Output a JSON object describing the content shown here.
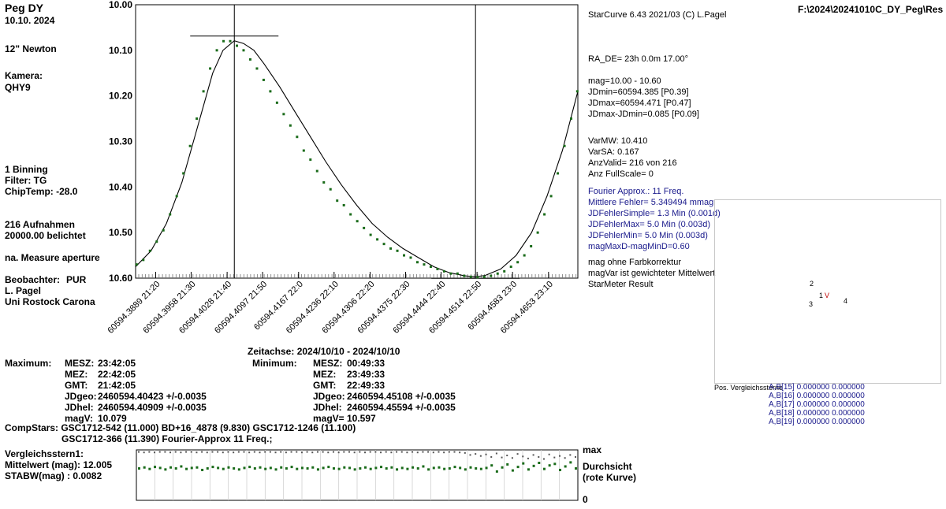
{
  "star": {
    "name": "Peg DY",
    "date": "10.10. 2024",
    "telescope": "12\" Newton",
    "camera_label": "Kamera:",
    "camera": "QHY9",
    "binning": "1 Binning",
    "filter": "Filter: TG",
    "chiptemp": "ChipTemp: -28.0",
    "exposures": "216 Aufnahmen",
    "exposed": "20000.00 belichtet",
    "measure": "na. Measure aperture",
    "observer_label": "Beobachter:",
    "observer_code": "PUR",
    "observer_name": "L. Pagel",
    "institution": "Uni Rostock Carona"
  },
  "software": "StarCurve 6.43 2021/03  (C) L.Pagel",
  "filepath": "F:\\2024\\20241010C_DY_Peg\\Res",
  "right_info": {
    "ra_de": "RA_DE= 23h 0.0m 17.00°",
    "mag_range": "mag=10.00 - 10.60",
    "jdmin": "JDmin=60594.385 [P0.39]",
    "jdmax": "JDmax=60594.471 [P0.47]",
    "jdspan": "JDmax-JDmin=0.085 [P0.09]",
    "varmw": "VarMW: 10.410",
    "varsa": "VarSA: 0.167",
    "anzvalid": "AnzValid= 216 von 216",
    "fullscale": "Anz FullScale= 0"
  },
  "fourier_info": [
    "Fourier Approx.: 11 Freq.",
    "Mittlere Fehler= 5.349494 mmag",
    "JDFehlerSimple=    1.3 Min (0.001d)",
    "JDFehlerMax=    5.0 Min (0.003d)",
    "JDFehlerMin=   5.0 Min (0.003d)",
    "magMaxD-magMinD=0.60"
  ],
  "notes": [
    "mag ohne Farbkorrektur",
    "magVar ist gewichteter Mittelwert",
    "StarMeter Result"
  ],
  "comp_panel": {
    "title": "Pos. Vergleichssterne",
    "labels": [
      "2",
      "1",
      "V",
      "3",
      "4"
    ],
    "rows": [
      "A,B[15] 0.000000 0.000000",
      "A,B[16] 0.000000 0.000000",
      "A,B[17] 0.000000 0.000000",
      "A,B[18] 0.000000 0.000000",
      "A,B[19] 0.000000 0.000000"
    ]
  },
  "zeitachse": "Zeitachse:  2024/10/10  -  2024/10/10",
  "maximum": {
    "label": "Maximum:",
    "rows": [
      [
        "MESZ:",
        "23:42:05"
      ],
      [
        "MEZ:",
        "22:42:05"
      ],
      [
        "GMT:",
        "21:42:05"
      ],
      [
        "JDgeo:",
        "2460594.40423   +/-0.0035"
      ],
      [
        "JDhel:",
        "2460594.40909  +/-0.0035"
      ],
      [
        "magV:",
        "10.079"
      ]
    ]
  },
  "minimum": {
    "label": "Minimum:",
    "rows": [
      [
        "MESZ:",
        "00:49:33"
      ],
      [
        "MEZ:",
        "23:49:33"
      ],
      [
        "GMT:",
        "22:49:33"
      ],
      [
        "JDgeo:",
        "2460594.45108   +/-0.0035"
      ],
      [
        "JDhel:",
        "2460594.45594  +/-0.0035"
      ],
      [
        "magV=",
        "10.597"
      ]
    ]
  },
  "compstars": {
    "line1": "CompStars: GSC1712-542 (11.000) BD+16_4878 (9.830) GSC1712-1246 (11.100)",
    "line2": "GSC1712-366 (11.390)      Fourier-Approx 11 Freq.;"
  },
  "vergleich": {
    "title": "Vergleichsstern1:",
    "mean": "Mittelwert (mag): 12.005",
    "stdev": "STABW(mag)   :  0.0082"
  },
  "lower_plot": {
    "max_label": "max",
    "zero_label": "0",
    "durchsicht": "Durchsicht",
    "rote_kurve": "(rote Kurve)"
  },
  "colors": {
    "points": "#1a6b1a",
    "curve": "#000000",
    "frame": "#000000",
    "blue_text": "#1a1a8c"
  },
  "chart_data": {
    "type": "scatter",
    "title": "Peg DY",
    "xlabel": "Zeitachse:  2024/10/10  -  2024/10/10",
    "ylabel": "",
    "y_reversed": true,
    "xlim": [
      60594.385,
      60594.471
    ],
    "ylim": [
      10.0,
      10.6
    ],
    "yticks": [
      "10.00",
      "10.10",
      "10.20",
      "10.30",
      "10.40",
      "10.50",
      "10.60"
    ],
    "xticks": [
      "60594.3889  21:20",
      "60594.3958  21:30",
      "60594.4028  21:40",
      "60594.4097  21:50",
      "60594.4167  22:0",
      "60594.4236  22:10",
      "60594.4306  22:20",
      "60594.4375  22:30",
      "60594.4444  22:40",
      "60594.4514  22:50",
      "60594.4583  23:0",
      "60594.4653  23:10"
    ],
    "xtick_values": [
      60594.3889,
      60594.3958,
      60594.4028,
      60594.4097,
      60594.4167,
      60594.4236,
      60594.4306,
      60594.4375,
      60594.4444,
      60594.4514,
      60594.4583,
      60594.4653
    ],
    "max_marker": {
      "x": 60594.4042,
      "y": 10.079
    },
    "min_marker": {
      "x": 60594.4511,
      "y": 10.597
    },
    "fit_curve": {
      "x": [
        60594.385,
        60594.388,
        60594.391,
        60594.394,
        60594.397,
        60594.4,
        60594.402,
        60594.4042,
        60594.406,
        60594.408,
        60594.41,
        60594.413,
        60594.416,
        60594.419,
        60594.422,
        60594.425,
        60594.428,
        60594.431,
        60594.434,
        60594.437,
        60594.44,
        60594.443,
        60594.446,
        60594.449,
        60594.4511,
        60594.453,
        60594.456,
        60594.459,
        60594.462,
        60594.465,
        60594.468,
        60594.471
      ],
      "y": [
        10.575,
        10.54,
        10.48,
        10.39,
        10.27,
        10.15,
        10.1,
        10.079,
        10.085,
        10.1,
        10.13,
        10.18,
        10.235,
        10.29,
        10.345,
        10.395,
        10.44,
        10.48,
        10.51,
        10.535,
        10.555,
        10.575,
        10.588,
        10.595,
        10.597,
        10.594,
        10.58,
        10.55,
        10.5,
        10.42,
        10.32,
        10.19
      ]
    },
    "series": [
      {
        "values_x": [
          60594.3852,
          60594.3865,
          60594.3878,
          60594.3891,
          60594.3904,
          60594.3917,
          60594.393,
          60594.3943,
          60594.3956,
          60594.3969,
          60594.3982,
          60594.3995,
          60594.4008,
          60594.4021,
          60594.4034,
          60594.4047,
          60594.406,
          60594.4073,
          60594.4086,
          60594.4099,
          60594.4112,
          60594.4125,
          60594.4138,
          60594.4151,
          60594.4164,
          60594.4177,
          60594.419,
          60594.4203,
          60594.4216,
          60594.4229,
          60594.4242,
          60594.4255,
          60594.4268,
          60594.4281,
          60594.4294,
          60594.4307,
          60594.432,
          60594.4333,
          60594.4346,
          60594.4359,
          60594.4372,
          60594.4385,
          60594.4398,
          60594.4411,
          60594.4424,
          60594.4437,
          60594.445,
          60594.4463,
          60594.4476,
          60594.4489,
          60594.4502,
          60594.4515,
          60594.4528,
          60594.4541,
          60594.4554,
          60594.4567,
          60594.458,
          60594.4593,
          60594.4606,
          60594.4619,
          60594.4632,
          60594.4645,
          60594.4658,
          60594.4671,
          60594.4684,
          60594.4697,
          60594.4709
        ],
        "values_y": [
          10.57,
          10.56,
          10.54,
          10.52,
          10.495,
          10.46,
          10.42,
          10.37,
          10.31,
          10.25,
          10.19,
          10.14,
          10.1,
          10.08,
          10.08,
          10.09,
          10.1,
          10.12,
          10.14,
          10.165,
          10.19,
          10.215,
          10.24,
          10.265,
          10.29,
          10.32,
          10.34,
          10.365,
          10.39,
          10.405,
          10.43,
          10.44,
          10.46,
          10.475,
          10.49,
          10.505,
          10.515,
          10.525,
          10.535,
          10.54,
          10.55,
          10.555,
          10.565,
          10.57,
          10.575,
          10.58,
          10.585,
          10.59,
          10.59,
          10.595,
          10.597,
          10.598,
          10.597,
          10.595,
          10.59,
          10.585,
          10.575,
          10.565,
          10.55,
          10.53,
          10.5,
          10.46,
          10.42,
          10.37,
          10.31,
          10.25,
          10.19
        ]
      }
    ]
  },
  "comp_chart_data": {
    "type": "scatter",
    "ylim": [
      0,
      1
    ],
    "series": [
      {
        "values": [
          0.64,
          0.66,
          0.63,
          0.67,
          0.65,
          0.62,
          0.66,
          0.64,
          0.68,
          0.63,
          0.65,
          0.66,
          0.61,
          0.64,
          0.67,
          0.65,
          0.63,
          0.66,
          0.64,
          0.62,
          0.65,
          0.67,
          0.64,
          0.66,
          0.63,
          0.65,
          0.62,
          0.66,
          0.64,
          0.67,
          0.63,
          0.65,
          0.64,
          0.66,
          0.62,
          0.65,
          0.67,
          0.64,
          0.63,
          0.66,
          0.65,
          0.62,
          0.64,
          0.66,
          0.63,
          0.65,
          0.67,
          0.64,
          0.66,
          0.62,
          0.65,
          0.63,
          0.66,
          0.64,
          0.68,
          0.62,
          0.65,
          0.66,
          0.63,
          0.64,
          0.67,
          0.65,
          0.62,
          0.66,
          0.64,
          0.63,
          0.65,
          0.7,
          0.58,
          0.66,
          0.72,
          0.6,
          0.67,
          0.74,
          0.62,
          0.69,
          0.75,
          0.63,
          0.7,
          0.73,
          0.61,
          0.68,
          0.76,
          0.64
        ]
      },
      {
        "values": [
          0.96,
          0.95,
          0.96,
          0.95,
          0.96,
          0.96,
          0.95,
          0.96,
          0.95,
          0.96,
          0.96,
          0.95,
          0.96,
          0.95,
          0.96,
          0.96,
          0.95,
          0.96,
          0.95,
          0.96,
          0.96,
          0.95,
          0.96,
          0.95,
          0.96,
          0.96,
          0.95,
          0.96,
          0.95,
          0.96,
          0.96,
          0.95,
          0.96,
          0.95,
          0.96,
          0.96,
          0.95,
          0.96,
          0.95,
          0.96,
          0.96,
          0.95,
          0.96,
          0.95,
          0.96,
          0.96,
          0.95,
          0.96,
          0.95,
          0.96,
          0.96,
          0.95,
          0.96,
          0.95,
          0.96,
          0.96,
          0.95,
          0.96,
          0.95,
          0.96,
          0.96,
          0.95,
          0.94,
          0.9,
          0.92,
          0.88,
          0.91,
          0.86,
          0.93,
          0.85,
          0.89,
          0.84,
          0.92,
          0.87,
          0.83,
          0.9,
          0.86,
          0.82,
          0.91,
          0.85,
          0.88,
          0.84,
          0.9,
          0.86
        ]
      }
    ]
  }
}
